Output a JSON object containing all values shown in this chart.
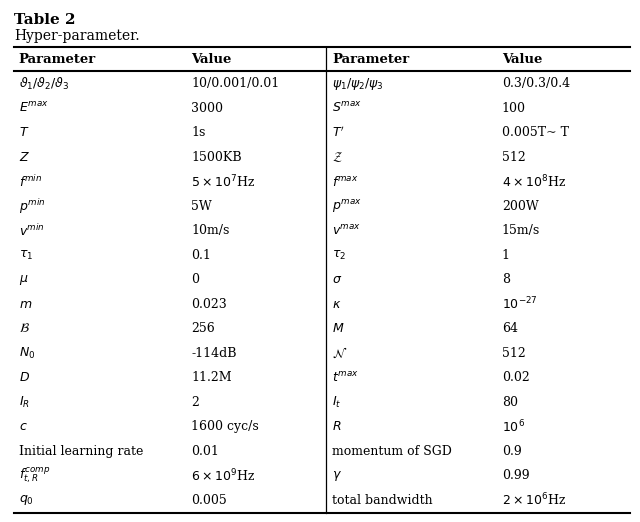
{
  "title": "Table 2",
  "subtitle": "Hyper-parameter.",
  "rows": [
    [
      "ϑ_1/ϑ_2/ϑ_3",
      "10/0.001/0.01",
      "ψ_1/ψ_2/ψ_3",
      "0.3/0.3/0.4"
    ],
    [
      "E^max",
      "3000",
      "S^max",
      "100"
    ],
    [
      "T",
      "1s",
      "T_prime",
      "0.005T~ T"
    ],
    [
      "Z",
      "1500KB",
      "Z_cal",
      "512"
    ],
    [
      "f^min",
      "5x10^7Hz",
      "f^max",
      "4x10^8Hz"
    ],
    [
      "p^min",
      "5W",
      "p^max",
      "200W"
    ],
    [
      "v^min",
      "10m/s",
      "v^max",
      "15m/s"
    ],
    [
      "τ_1",
      "0.1",
      "τ_2",
      "1"
    ],
    [
      "μ",
      "0",
      "σ",
      "8"
    ],
    [
      "m",
      "0.023",
      "κ",
      "10^-27"
    ],
    [
      "B_cal",
      "256",
      "M",
      "64"
    ],
    [
      "N_0",
      "-114dB",
      "N_cal",
      "512"
    ],
    [
      "D",
      "11.2M",
      "t^max",
      "0.02"
    ],
    [
      "I_R",
      "2",
      "I_t",
      "80"
    ],
    [
      "c",
      "1600 cyc/s",
      "R",
      "10^6"
    ],
    [
      "Initial learning rate",
      "0.01",
      "momentum of SGD",
      "0.9"
    ],
    [
      "f_tR^comp",
      "6x10^9Hz",
      "γ",
      "0.99"
    ],
    [
      "q_0",
      "0.005",
      "total bandwidth",
      "2x10^6Hz"
    ]
  ],
  "figsize": [
    6.4,
    5.22
  ],
  "dpi": 100,
  "bg_color": "#ffffff",
  "text_color": "#000000",
  "line_color": "#000000",
  "title_fontsize": 11,
  "subtitle_fontsize": 10,
  "header_fontsize": 9.5,
  "body_fontsize": 9.0
}
